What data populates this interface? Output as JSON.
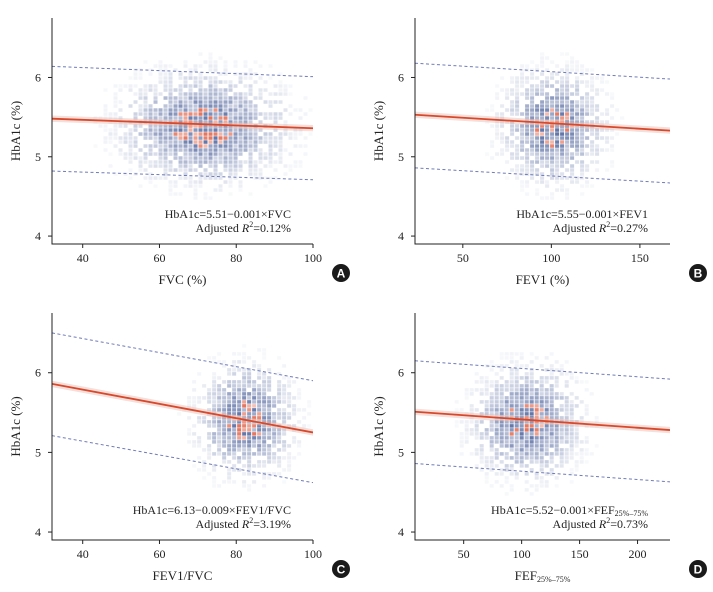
{
  "chart_data": [
    {
      "type": "scatter",
      "panel_label": "A",
      "xlabel": "FVC (%)",
      "ylabel": "HbA1c (%)",
      "xlim": [
        32,
        100
      ],
      "ylim": [
        3.9,
        6.75
      ],
      "xticks": [
        "40",
        "60",
        "80",
        "100"
      ],
      "xtick_values": [
        40,
        60,
        80,
        100
      ],
      "yticks": [
        "4",
        "5",
        "6"
      ],
      "ytick_values": [
        4,
        5,
        6
      ],
      "equation": "HbA1c=5.51−0.001×FVC",
      "r2_prefix": "Adjusted ",
      "r2_symbol": "R",
      "r2_super": "2",
      "r2_value": "=0.12%",
      "fit_line": {
        "x": [
          32,
          100
        ],
        "y": [
          5.48,
          5.36
        ]
      },
      "upper_band": {
        "x": [
          32,
          100
        ],
        "y": [
          6.14,
          6.01
        ]
      },
      "lower_band": {
        "x": [
          32,
          100
        ],
        "y": [
          4.82,
          4.71
        ]
      },
      "density_center": {
        "x": 71,
        "y": 5.4
      },
      "density_spread": {
        "x": 12,
        "y": 0.38
      },
      "density_x_range": [
        35,
        100
      ]
    },
    {
      "type": "scatter",
      "panel_label": "B",
      "xlabel": "FEV1 (%)",
      "ylabel": "HbA1c (%)",
      "xlim": [
        23,
        167
      ],
      "ylim": [
        3.9,
        6.75
      ],
      "xticks": [
        "50",
        "100",
        "150"
      ],
      "xtick_values": [
        50,
        100,
        150
      ],
      "yticks": [
        "4",
        "5",
        "6"
      ],
      "ytick_values": [
        4,
        5,
        6
      ],
      "equation": "HbA1c=5.55−0.001×FEV1",
      "r2_prefix": "Adjusted ",
      "r2_symbol": "R",
      "r2_super": "2",
      "r2_value": "=0.27%",
      "fit_line": {
        "x": [
          23,
          167
        ],
        "y": [
          5.53,
          5.33
        ]
      },
      "upper_band": {
        "x": [
          23,
          167
        ],
        "y": [
          6.18,
          5.98
        ]
      },
      "lower_band": {
        "x": [
          23,
          167
        ],
        "y": [
          4.86,
          4.67
        ]
      },
      "density_center": {
        "x": 100,
        "y": 5.4
      },
      "density_spread": {
        "x": 16,
        "y": 0.38
      },
      "density_x_range": [
        40,
        165
      ]
    },
    {
      "type": "scatter",
      "panel_label": "C",
      "xlabel": "FEV1/FVC",
      "ylabel": "HbA1c (%)",
      "xlim": [
        32,
        100
      ],
      "ylim": [
        3.9,
        6.75
      ],
      "xticks": [
        "40",
        "60",
        "80",
        "100"
      ],
      "xtick_values": [
        40,
        60,
        80,
        100
      ],
      "yticks": [
        "4",
        "5",
        "6"
      ],
      "ytick_values": [
        4,
        5,
        6
      ],
      "equation": "HbA1c=6.13−0.009×FEV1/FVC",
      "r2_prefix": "Adjusted ",
      "r2_symbol": "R",
      "r2_super": "2",
      "r2_value": "=3.19%",
      "fit_line": {
        "x": [
          32,
          100
        ],
        "y": [
          5.86,
          5.25
        ]
      },
      "upper_band": {
        "x": [
          32,
          100
        ],
        "y": [
          6.5,
          5.9
        ]
      },
      "lower_band": {
        "x": [
          32,
          100
        ],
        "y": [
          5.21,
          4.62
        ]
      },
      "density_center": {
        "x": 82,
        "y": 5.42
      },
      "density_spread": {
        "x": 7,
        "y": 0.38
      },
      "density_x_range": [
        62,
        100
      ]
    },
    {
      "type": "scatter",
      "panel_label": "D",
      "xlabel_main": "FEF",
      "xlabel_sub": "25%–75%",
      "ylabel": "HbA1c (%)",
      "xlim": [
        8,
        228
      ],
      "ylim": [
        3.9,
        6.75
      ],
      "xticks": [
        "50",
        "100",
        "150",
        "200"
      ],
      "xtick_values": [
        50,
        100,
        150,
        200
      ],
      "yticks": [
        "4",
        "5",
        "6"
      ],
      "ytick_values": [
        4,
        5,
        6
      ],
      "equation_main": "HbA1c=5.52−0.001×FEF",
      "equation_sub": "25%–75%",
      "r2_prefix": "Adjusted ",
      "r2_symbol": "R",
      "r2_super": "2",
      "r2_value": "=0.73%",
      "fit_line": {
        "x": [
          8,
          228
        ],
        "y": [
          5.51,
          5.28
        ]
      },
      "upper_band": {
        "x": [
          8,
          228
        ],
        "y": [
          6.15,
          5.92
        ]
      },
      "lower_band": {
        "x": [
          8,
          228
        ],
        "y": [
          4.86,
          4.63
        ]
      },
      "density_center": {
        "x": 103,
        "y": 5.4
      },
      "density_spread": {
        "x": 26,
        "y": 0.38
      },
      "density_x_range": [
        25,
        200
      ]
    }
  ],
  "colors": {
    "fit_line": "#d9482b",
    "ci_band": "#e6b8ad",
    "prediction_band": "#6f7bb8",
    "density": "#31498c",
    "density_hot": "#d9482b",
    "axis": "#222222",
    "badge": "#1a1a1a"
  }
}
